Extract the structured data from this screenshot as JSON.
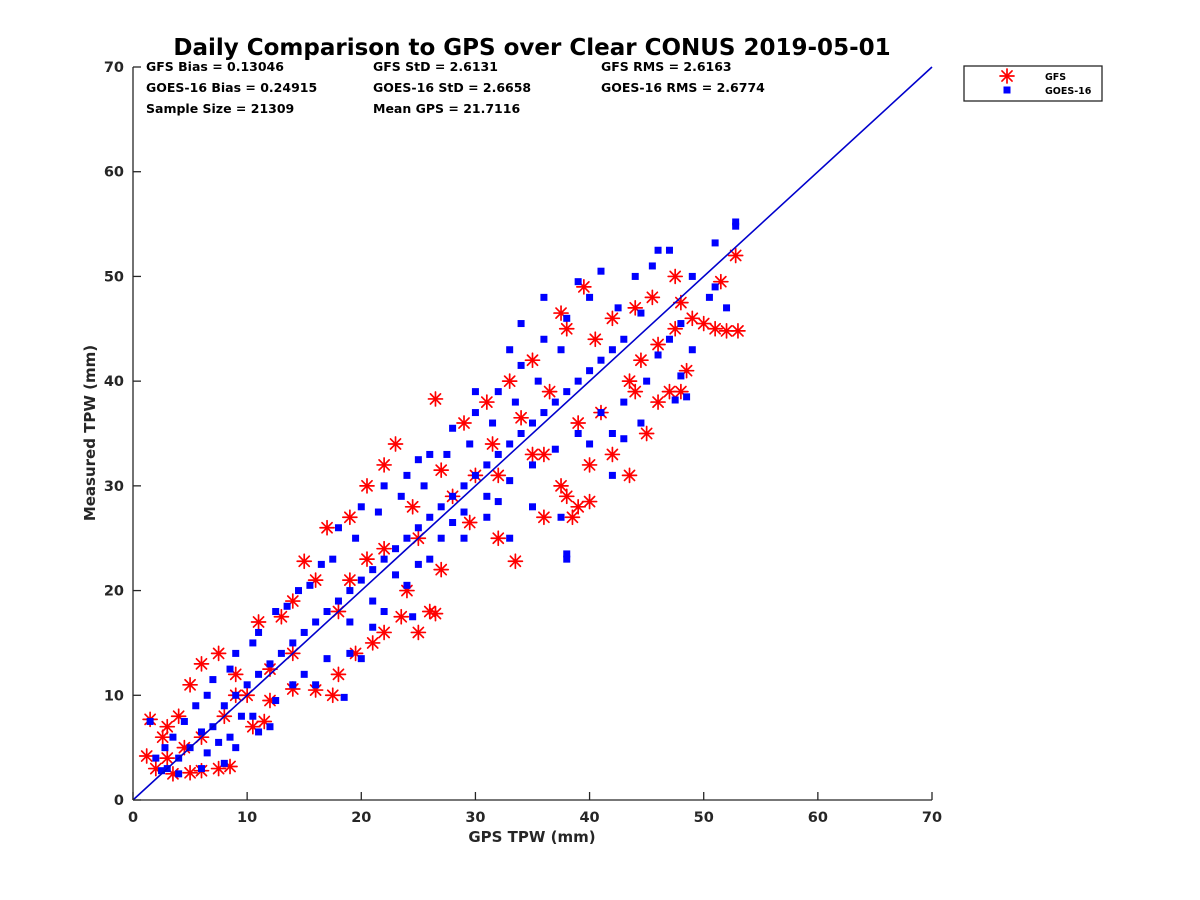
{
  "chart_data": {
    "type": "scatter",
    "title": "Daily Comparison to GPS over Clear CONUS 2019-05-01",
    "xlabel": "GPS TPW (mm)",
    "ylabel": "Measured TPW (mm)",
    "xlim": [
      0,
      70
    ],
    "ylim": [
      0,
      70
    ],
    "xticks": [
      "0",
      "10",
      "20",
      "30",
      "40",
      "50",
      "60",
      "70"
    ],
    "yticks": [
      "0",
      "10",
      "20",
      "30",
      "40",
      "50",
      "60",
      "70"
    ],
    "grid": false,
    "legend_position": "top-right-outside",
    "stats": {
      "gfs_bias": "GFS Bias = 0.13046",
      "goes_bias": "GOES-16 Bias = 0.24915",
      "sample_size": "Sample Size = 21309",
      "gfs_std": "GFS StD = 2.6131",
      "goes_std": "GOES-16 StD = 2.6658",
      "mean_gps": "Mean GPS = 21.7116",
      "gfs_rms": "GFS RMS = 2.6163",
      "goes_rms": "GOES-16 RMS = 2.6774"
    },
    "reference_line": {
      "name": "1:1 line",
      "x": [
        0,
        70
      ],
      "y": [
        0,
        70
      ],
      "color": "#0000cc"
    },
    "series": [
      {
        "name": "GFS",
        "marker": "asterisk",
        "color": "#ff0000",
        "points": [
          [
            1.5,
            7.7
          ],
          [
            1.2,
            4.2
          ],
          [
            2,
            3
          ],
          [
            3.5,
            2.5
          ],
          [
            5,
            2.6
          ],
          [
            6,
            2.8
          ],
          [
            7.5,
            3
          ],
          [
            8.5,
            3.2
          ],
          [
            2.6,
            6
          ],
          [
            3,
            7
          ],
          [
            4,
            8
          ],
          [
            5,
            11
          ],
          [
            6,
            13
          ],
          [
            7.5,
            14
          ],
          [
            9,
            12
          ],
          [
            10,
            10
          ],
          [
            8,
            8
          ],
          [
            11,
            17
          ],
          [
            13,
            17.5
          ],
          [
            14,
            19
          ],
          [
            15,
            22.8
          ],
          [
            16,
            21
          ],
          [
            17,
            26
          ],
          [
            19,
            27
          ],
          [
            20.5,
            30
          ],
          [
            22,
            32
          ],
          [
            23,
            34
          ],
          [
            16,
            10.5
          ],
          [
            14,
            10.6
          ],
          [
            12,
            9.5
          ],
          [
            18,
            12
          ],
          [
            17.5,
            10
          ],
          [
            19.5,
            14
          ],
          [
            21,
            15
          ],
          [
            22,
            16
          ],
          [
            23.5,
            17.5
          ],
          [
            25,
            16
          ],
          [
            26,
            18
          ],
          [
            26.5,
            17.8
          ],
          [
            24,
            20
          ],
          [
            27,
            22
          ],
          [
            26.5,
            38.3
          ],
          [
            29,
            36
          ],
          [
            31,
            38
          ],
          [
            33,
            40
          ],
          [
            35,
            42
          ],
          [
            33.5,
            22.8
          ],
          [
            32,
            25
          ],
          [
            36,
            27
          ],
          [
            38,
            29
          ],
          [
            39,
            28
          ],
          [
            38.5,
            27
          ],
          [
            40,
            32
          ],
          [
            42,
            33
          ],
          [
            43.5,
            31
          ],
          [
            45,
            35
          ],
          [
            47,
            39
          ],
          [
            48.5,
            41
          ],
          [
            47.5,
            45
          ],
          [
            49,
            46
          ],
          [
            48,
            47.5
          ],
          [
            47.5,
            50
          ],
          [
            51.5,
            49.5
          ],
          [
            52.8,
            52
          ],
          [
            50,
            45.5
          ],
          [
            51,
            45
          ],
          [
            52,
            44.8
          ],
          [
            53,
            44.8
          ],
          [
            48,
            39
          ],
          [
            46,
            38
          ],
          [
            44,
            39
          ],
          [
            40.5,
            44
          ],
          [
            37.5,
            46.5
          ],
          [
            38,
            45
          ],
          [
            39,
            36
          ],
          [
            36,
            33
          ],
          [
            30,
            31
          ],
          [
            28,
            29
          ],
          [
            25,
            25
          ],
          [
            22,
            24
          ],
          [
            19,
            21
          ],
          [
            18,
            18
          ],
          [
            14,
            14
          ],
          [
            12,
            12.5
          ],
          [
            9,
            10
          ],
          [
            6,
            6
          ],
          [
            4.5,
            5
          ],
          [
            3,
            4
          ],
          [
            27,
            31.5
          ],
          [
            31.5,
            34
          ],
          [
            34,
            36.5
          ],
          [
            20.5,
            23
          ],
          [
            24.5,
            28
          ],
          [
            10.5,
            7
          ],
          [
            11.5,
            7.5
          ],
          [
            43.5,
            40
          ],
          [
            44.5,
            42
          ],
          [
            41,
            37
          ],
          [
            36.5,
            39
          ],
          [
            42,
            46
          ],
          [
            45.5,
            48
          ],
          [
            39.5,
            49
          ],
          [
            44,
            47
          ],
          [
            46,
            43.5
          ],
          [
            29.5,
            26.5
          ],
          [
            32,
            31
          ],
          [
            35,
            33
          ],
          [
            37.5,
            30
          ],
          [
            40,
            28.5
          ]
        ]
      },
      {
        "name": "GOES-16",
        "marker": "square",
        "color": "#0000ff",
        "points": [
          [
            1.5,
            7.5
          ],
          [
            2,
            4
          ],
          [
            3,
            3
          ],
          [
            4,
            4
          ],
          [
            5,
            5
          ],
          [
            6,
            6.5
          ],
          [
            7,
            7
          ],
          [
            8,
            9
          ],
          [
            9,
            10
          ],
          [
            10,
            11
          ],
          [
            11,
            12
          ],
          [
            12,
            13
          ],
          [
            13,
            14
          ],
          [
            14,
            15
          ],
          [
            15,
            16
          ],
          [
            16,
            17
          ],
          [
            17,
            18
          ],
          [
            18,
            19
          ],
          [
            19,
            20
          ],
          [
            20,
            21
          ],
          [
            21,
            22
          ],
          [
            22,
            23
          ],
          [
            23,
            24
          ],
          [
            24,
            25
          ],
          [
            25,
            26
          ],
          [
            26,
            27
          ],
          [
            27,
            28
          ],
          [
            28,
            29
          ],
          [
            29,
            30
          ],
          [
            30,
            31
          ],
          [
            31,
            32
          ],
          [
            32,
            33
          ],
          [
            33,
            34
          ],
          [
            34,
            35
          ],
          [
            35,
            36
          ],
          [
            36,
            37
          ],
          [
            37,
            38
          ],
          [
            38,
            39
          ],
          [
            39,
            40
          ],
          [
            40,
            41
          ],
          [
            41,
            42
          ],
          [
            42,
            43
          ],
          [
            43,
            44
          ],
          [
            3.5,
            6
          ],
          [
            5.5,
            9
          ],
          [
            7,
            11.5
          ],
          [
            9,
            14
          ],
          [
            11,
            16
          ],
          [
            12.5,
            18
          ],
          [
            14.5,
            20
          ],
          [
            16.5,
            22.5
          ],
          [
            18,
            26
          ],
          [
            20,
            28
          ],
          [
            22,
            30
          ],
          [
            24,
            31
          ],
          [
            26,
            33
          ],
          [
            28,
            35.5
          ],
          [
            30,
            37
          ],
          [
            32,
            39
          ],
          [
            34,
            41.5
          ],
          [
            36,
            44
          ],
          [
            38,
            46
          ],
          [
            39,
            49.5
          ],
          [
            41,
            50.5
          ],
          [
            44,
            50
          ],
          [
            45.5,
            51
          ],
          [
            46,
            52.5
          ],
          [
            47,
            52.5
          ],
          [
            49,
            50
          ],
          [
            51,
            49
          ],
          [
            52.8,
            55.2
          ],
          [
            52.8,
            54.8
          ],
          [
            51,
            53.2
          ],
          [
            50.5,
            48
          ],
          [
            52,
            47
          ],
          [
            49,
            43
          ],
          [
            48.5,
            38.5
          ],
          [
            47.5,
            38.2
          ],
          [
            44.5,
            36
          ],
          [
            42,
            35
          ],
          [
            38,
            23.5
          ],
          [
            38,
            23
          ],
          [
            37.5,
            27
          ],
          [
            35,
            28
          ],
          [
            33,
            25
          ],
          [
            31,
            27
          ],
          [
            29,
            25
          ],
          [
            26,
            23
          ],
          [
            24,
            20.5
          ],
          [
            22,
            18
          ],
          [
            21,
            16.5
          ],
          [
            19,
            14
          ],
          [
            18.5,
            9.8
          ],
          [
            16,
            11
          ],
          [
            14,
            11
          ],
          [
            12,
            7
          ],
          [
            11,
            6.5
          ],
          [
            9,
            5
          ],
          [
            8,
            3.5
          ],
          [
            6,
            3
          ],
          [
            4,
            2.5
          ],
          [
            2.5,
            2.8
          ],
          [
            6.5,
            4.5
          ],
          [
            8.5,
            6
          ],
          [
            10.5,
            8
          ],
          [
            12.5,
            9.5
          ],
          [
            15,
            12
          ],
          [
            17,
            13.5
          ],
          [
            19,
            17
          ],
          [
            21,
            19
          ],
          [
            23,
            21.5
          ],
          [
            25,
            22.5
          ],
          [
            27,
            25
          ],
          [
            29,
            27.5
          ],
          [
            31,
            29
          ],
          [
            33,
            30.5
          ],
          [
            35,
            32
          ],
          [
            37,
            33.5
          ],
          [
            39,
            35
          ],
          [
            41,
            37
          ],
          [
            43,
            38
          ],
          [
            45,
            40
          ],
          [
            46,
            42.5
          ],
          [
            47,
            44
          ],
          [
            48,
            45.5
          ],
          [
            44.5,
            46.5
          ],
          [
            42.5,
            47
          ],
          [
            40,
            48
          ],
          [
            37.5,
            43
          ],
          [
            35.5,
            40
          ],
          [
            33.5,
            38
          ],
          [
            31.5,
            36
          ],
          [
            29.5,
            34
          ],
          [
            27.5,
            33
          ],
          [
            25.5,
            30
          ],
          [
            23.5,
            29
          ],
          [
            21.5,
            27.5
          ],
          [
            19.5,
            25
          ],
          [
            17.5,
            23
          ],
          [
            15.5,
            20.5
          ],
          [
            13.5,
            18.5
          ],
          [
            10.5,
            15
          ],
          [
            8.5,
            12.5
          ],
          [
            6.5,
            10
          ],
          [
            4.5,
            7.5
          ],
          [
            2.8,
            5
          ],
          [
            36,
            48
          ],
          [
            34,
            45.5
          ],
          [
            33,
            43
          ],
          [
            40,
            34
          ],
          [
            42,
            31
          ],
          [
            43,
            34.5
          ],
          [
            48,
            40.5
          ],
          [
            30,
            39
          ],
          [
            25,
            32.5
          ],
          [
            28,
            26.5
          ],
          [
            32,
            28.5
          ],
          [
            24.5,
            17.5
          ],
          [
            20,
            13.5
          ],
          [
            9.5,
            8
          ],
          [
            7.5,
            5.5
          ]
        ]
      }
    ]
  }
}
